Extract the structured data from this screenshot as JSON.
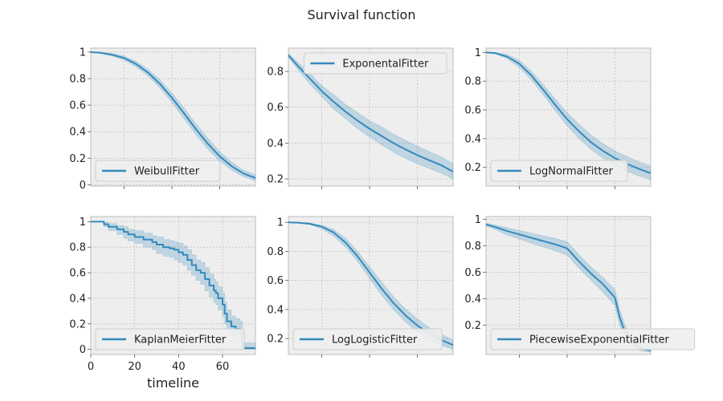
{
  "figure": {
    "title": "Survival function",
    "line_color": "#348abd",
    "background": "#eeeeee"
  },
  "chart_data": [
    {
      "type": "line",
      "legend": "WeibullFitter",
      "legend_placement": "lower-left",
      "xlim": [
        6,
        75
      ],
      "ylim": [
        -0.01,
        1.03
      ],
      "xticks": [
        20,
        40,
        60
      ],
      "yticks": [
        0.0,
        0.2,
        0.4,
        0.6,
        0.8,
        1.0
      ],
      "x_tick_labels_visible": false,
      "xlabel": "",
      "grid": true,
      "step": false,
      "x": [
        6,
        10,
        15,
        20,
        25,
        30,
        35,
        40,
        45,
        50,
        55,
        60,
        65,
        70,
        75
      ],
      "y": [
        1.0,
        0.995,
        0.98,
        0.955,
        0.91,
        0.845,
        0.76,
        0.655,
        0.54,
        0.42,
        0.31,
        0.215,
        0.14,
        0.085,
        0.05
      ],
      "lower": [
        1.0,
        0.99,
        0.97,
        0.94,
        0.89,
        0.82,
        0.73,
        0.62,
        0.5,
        0.38,
        0.27,
        0.18,
        0.11,
        0.06,
        0.03
      ],
      "upper": [
        1.0,
        0.998,
        0.99,
        0.97,
        0.93,
        0.87,
        0.79,
        0.69,
        0.58,
        0.46,
        0.35,
        0.25,
        0.17,
        0.11,
        0.075
      ]
    },
    {
      "type": "line",
      "legend": "ExponentalFitter",
      "legend_placement": "upper-right",
      "xlim": [
        6,
        75
      ],
      "ylim": [
        0.16,
        0.93
      ],
      "xticks": [
        20,
        40,
        60
      ],
      "yticks": [
        0.2,
        0.4,
        0.6,
        0.8
      ],
      "x_tick_labels_visible": false,
      "xlabel": "",
      "grid": true,
      "step": false,
      "x": [
        6,
        10,
        15,
        20,
        25,
        30,
        35,
        40,
        45,
        50,
        55,
        60,
        65,
        70,
        75
      ],
      "y": [
        0.89,
        0.83,
        0.76,
        0.69,
        0.63,
        0.575,
        0.525,
        0.48,
        0.44,
        0.4,
        0.365,
        0.333,
        0.304,
        0.277,
        0.24
      ],
      "lower": [
        0.88,
        0.81,
        0.73,
        0.66,
        0.59,
        0.535,
        0.48,
        0.435,
        0.39,
        0.35,
        0.315,
        0.285,
        0.258,
        0.232,
        0.2
      ],
      "upper": [
        0.9,
        0.85,
        0.79,
        0.72,
        0.67,
        0.615,
        0.57,
        0.525,
        0.49,
        0.45,
        0.415,
        0.383,
        0.352,
        0.324,
        0.285
      ]
    },
    {
      "type": "line",
      "legend": "LogNormalFitter",
      "legend_placement": "lower-left",
      "xlim": [
        6,
        75
      ],
      "ylim": [
        0.07,
        1.03
      ],
      "xticks": [
        20,
        40,
        60
      ],
      "yticks": [
        0.2,
        0.4,
        0.6,
        0.8,
        1.0
      ],
      "x_tick_labels_visible": false,
      "xlabel": "",
      "grid": true,
      "step": false,
      "x": [
        6,
        10,
        15,
        20,
        25,
        30,
        35,
        40,
        45,
        50,
        55,
        60,
        65,
        70,
        75
      ],
      "y": [
        1.0,
        0.995,
        0.97,
        0.92,
        0.84,
        0.74,
        0.635,
        0.535,
        0.45,
        0.375,
        0.315,
        0.265,
        0.225,
        0.19,
        0.16
      ],
      "lower": [
        1.0,
        0.99,
        0.955,
        0.895,
        0.81,
        0.705,
        0.595,
        0.49,
        0.4,
        0.325,
        0.265,
        0.215,
        0.175,
        0.14,
        0.115
      ],
      "upper": [
        1.0,
        0.998,
        0.985,
        0.945,
        0.87,
        0.775,
        0.675,
        0.58,
        0.5,
        0.425,
        0.365,
        0.315,
        0.275,
        0.24,
        0.21
      ]
    },
    {
      "type": "line",
      "legend": "KaplanMeierFitter",
      "legend_placement": "lower-left",
      "xlim": [
        0,
        75
      ],
      "ylim": [
        -0.04,
        1.04
      ],
      "xticks": [
        0,
        20,
        40,
        60
      ],
      "yticks": [
        0.0,
        0.2,
        0.4,
        0.6,
        0.8,
        1.0
      ],
      "x_tick_labels_visible": true,
      "xlabel": "timeline",
      "grid": true,
      "step": true,
      "x": [
        0,
        6,
        8,
        12,
        15,
        17,
        20,
        24,
        28,
        30,
        33,
        36,
        38,
        40,
        42,
        44,
        46,
        48,
        50,
        52,
        54,
        56,
        57,
        58,
        60,
        61,
        62,
        64,
        66,
        68,
        69,
        70,
        75
      ],
      "y": [
        1.0,
        0.98,
        0.96,
        0.94,
        0.92,
        0.9,
        0.88,
        0.86,
        0.84,
        0.82,
        0.8,
        0.79,
        0.78,
        0.76,
        0.74,
        0.7,
        0.66,
        0.62,
        0.6,
        0.55,
        0.5,
        0.46,
        0.44,
        0.4,
        0.35,
        0.28,
        0.22,
        0.18,
        0.16,
        0.14,
        0.02,
        0.01,
        0.01
      ],
      "lower": [
        1.0,
        0.96,
        0.93,
        0.9,
        0.87,
        0.85,
        0.83,
        0.8,
        0.78,
        0.75,
        0.73,
        0.72,
        0.7,
        0.68,
        0.66,
        0.62,
        0.58,
        0.54,
        0.51,
        0.46,
        0.41,
        0.37,
        0.35,
        0.31,
        0.26,
        0.2,
        0.14,
        0.11,
        0.09,
        0.08,
        0.005,
        0.0,
        0.0
      ],
      "upper": [
        1.0,
        0.995,
        0.985,
        0.97,
        0.96,
        0.94,
        0.93,
        0.91,
        0.89,
        0.88,
        0.86,
        0.85,
        0.84,
        0.83,
        0.81,
        0.78,
        0.74,
        0.7,
        0.68,
        0.64,
        0.59,
        0.55,
        0.53,
        0.49,
        0.44,
        0.37,
        0.31,
        0.26,
        0.24,
        0.22,
        0.06,
        0.05,
        0.05
      ]
    },
    {
      "type": "line",
      "legend": "LogLogisticFitter",
      "legend_placement": "lower-left",
      "xlim": [
        6,
        75
      ],
      "ylim": [
        0.09,
        1.04
      ],
      "xticks": [
        20,
        40,
        60
      ],
      "yticks": [
        0.2,
        0.4,
        0.6,
        0.8,
        1.0
      ],
      "x_tick_labels_visible": false,
      "xlabel": "",
      "grid": true,
      "step": false,
      "x": [
        6,
        10,
        15,
        20,
        25,
        30,
        35,
        40,
        45,
        50,
        55,
        60,
        65,
        70,
        75
      ],
      "y": [
        1.0,
        0.998,
        0.99,
        0.97,
        0.93,
        0.86,
        0.765,
        0.655,
        0.545,
        0.445,
        0.36,
        0.29,
        0.235,
        0.19,
        0.155
      ],
      "lower": [
        1.0,
        0.995,
        0.985,
        0.955,
        0.905,
        0.83,
        0.73,
        0.615,
        0.5,
        0.4,
        0.315,
        0.25,
        0.195,
        0.155,
        0.125
      ],
      "upper": [
        1.0,
        0.999,
        0.995,
        0.98,
        0.95,
        0.89,
        0.8,
        0.695,
        0.59,
        0.49,
        0.405,
        0.335,
        0.275,
        0.23,
        0.19
      ]
    },
    {
      "type": "line",
      "legend": "PiecewiseExponentialFitter",
      "legend_placement": "lower-left",
      "xlim": [
        6,
        75
      ],
      "ylim": [
        -0.02,
        1.02
      ],
      "xticks": [
        20,
        40,
        60
      ],
      "yticks": [
        0.2,
        0.4,
        0.6,
        0.8,
        1.0
      ],
      "x_tick_labels_visible": false,
      "xlabel": "",
      "grid": true,
      "step": false,
      "x": [
        6,
        10,
        15,
        20,
        25,
        30,
        35,
        40,
        45,
        50,
        55,
        60,
        62,
        64,
        66,
        68,
        70,
        72,
        75
      ],
      "y": [
        0.96,
        0.94,
        0.91,
        0.885,
        0.86,
        0.835,
        0.81,
        0.78,
        0.68,
        0.59,
        0.51,
        0.41,
        0.26,
        0.16,
        0.1,
        0.06,
        0.035,
        0.02,
        0.01
      ],
      "lower": [
        0.95,
        0.92,
        0.88,
        0.85,
        0.82,
        0.79,
        0.76,
        0.73,
        0.63,
        0.54,
        0.45,
        0.35,
        0.2,
        0.11,
        0.06,
        0.03,
        0.015,
        0.005,
        0.0
      ],
      "upper": [
        0.97,
        0.955,
        0.935,
        0.915,
        0.895,
        0.875,
        0.855,
        0.83,
        0.73,
        0.64,
        0.56,
        0.47,
        0.32,
        0.21,
        0.14,
        0.09,
        0.06,
        0.04,
        0.025
      ]
    }
  ]
}
